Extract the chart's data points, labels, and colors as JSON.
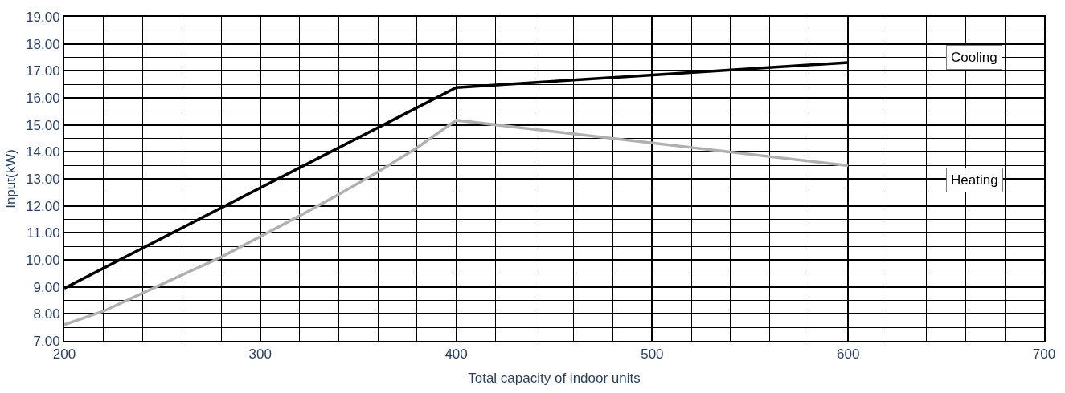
{
  "chart_data": {
    "type": "line",
    "xlabel": "Total capacity of indoor units",
    "ylabel": "Input(kW)",
    "xlim": [
      200,
      700
    ],
    "xticks": [
      200,
      300,
      400,
      500,
      600,
      700
    ],
    "ylim": [
      7,
      19
    ],
    "yticks": [
      {
        "value": 7,
        "label": "7.00"
      },
      {
        "value": 8,
        "label": "8.00"
      },
      {
        "value": 9,
        "label": "9.00"
      },
      {
        "value": 10,
        "label": "10.00"
      },
      {
        "value": 11,
        "label": "11.00"
      },
      {
        "value": 12,
        "label": "12.00"
      },
      {
        "value": 13,
        "label": "13.00"
      },
      {
        "value": 14,
        "label": "14.00"
      },
      {
        "value": 15,
        "label": "15.00"
      },
      {
        "value": 16,
        "label": "16.00"
      },
      {
        "value": 17,
        "label": "17.00"
      },
      {
        "value": 18,
        "label": "18.00"
      },
      {
        "value": 19,
        "label": "19.00"
      }
    ],
    "grid": true,
    "legend": false,
    "marker": "none",
    "line_style": "solid",
    "series": [
      {
        "name": "Cooling",
        "color": "#000000",
        "x": [
          200,
          400,
          600
        ],
        "values": [
          8.95,
          16.38,
          17.31
        ]
      },
      {
        "name": "Heating",
        "color": "#b0b0b0",
        "x": [
          200,
          220,
          240,
          260,
          280,
          300,
          320,
          340,
          360,
          380,
          400,
          600
        ],
        "values": [
          7.6,
          8.1,
          8.77,
          9.44,
          10.1,
          10.86,
          11.63,
          12.42,
          13.25,
          14.15,
          15.17,
          13.49
        ]
      }
    ]
  }
}
